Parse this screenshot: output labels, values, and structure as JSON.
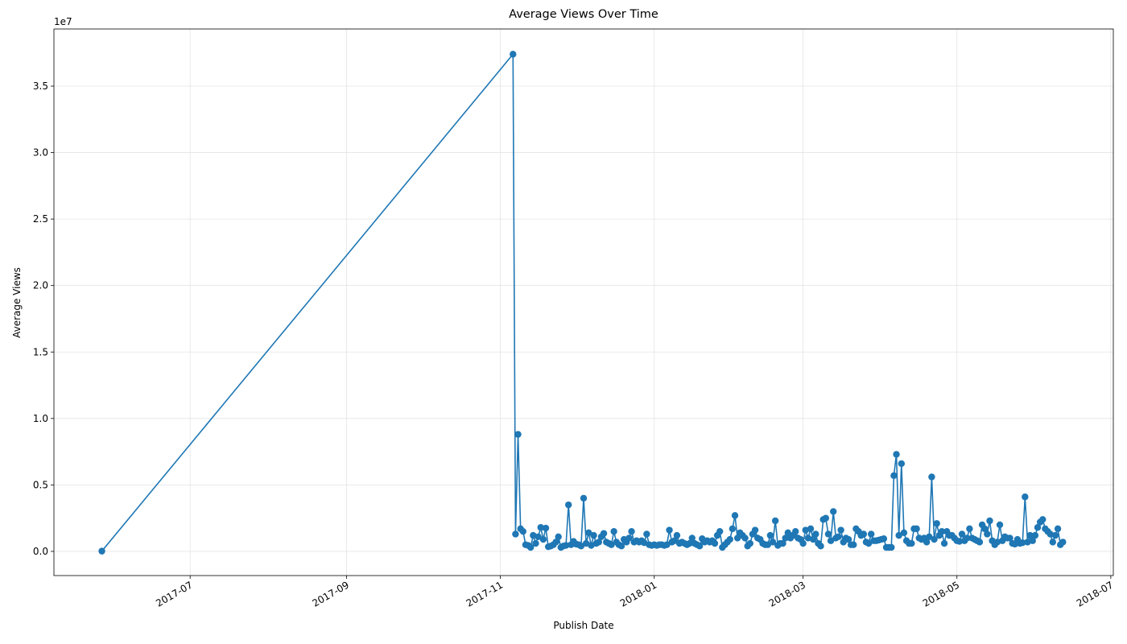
{
  "chart_data": {
    "type": "line",
    "title": "Average Views Over Time",
    "x_label": "Publish Date",
    "y_label": "Average Views",
    "y_offset_label": "1e7",
    "grid": true,
    "x": [
      "2017-05-27",
      "2017-11-06",
      "2017-11-07",
      "2017-11-08",
      "2017-11-09",
      "2017-11-10",
      "2017-11-11",
      "2017-11-12",
      "2017-11-13",
      "2017-11-14",
      "2017-11-15",
      "2017-11-16",
      "2017-11-17",
      "2017-11-18",
      "2017-11-19",
      "2017-11-20",
      "2017-11-21",
      "2017-11-22",
      "2017-11-23",
      "2017-11-24",
      "2017-11-25",
      "2017-11-26",
      "2017-11-27",
      "2017-11-28",
      "2017-11-29",
      "2017-11-30",
      "2017-12-01",
      "2017-12-02",
      "2017-12-03",
      "2017-12-04",
      "2017-12-05",
      "2017-12-06",
      "2017-12-07",
      "2017-12-08",
      "2017-12-09",
      "2017-12-10",
      "2017-12-11",
      "2017-12-12",
      "2017-12-13",
      "2017-12-14",
      "2017-12-15",
      "2017-12-16",
      "2017-12-17",
      "2017-12-18",
      "2017-12-19",
      "2017-12-20",
      "2017-12-21",
      "2017-12-22",
      "2017-12-23",
      "2017-12-24",
      "2017-12-25",
      "2017-12-26",
      "2017-12-27",
      "2017-12-28",
      "2017-12-29",
      "2017-12-30",
      "2017-12-31",
      "2018-01-01",
      "2018-01-02",
      "2018-01-03",
      "2018-01-04",
      "2018-01-05",
      "2018-01-06",
      "2018-01-07",
      "2018-01-08",
      "2018-01-09",
      "2018-01-10",
      "2018-01-11",
      "2018-01-12",
      "2018-01-13",
      "2018-01-14",
      "2018-01-15",
      "2018-01-16",
      "2018-01-17",
      "2018-01-18",
      "2018-01-19",
      "2018-01-20",
      "2018-01-21",
      "2018-01-22",
      "2018-01-23",
      "2018-01-24",
      "2018-01-25",
      "2018-01-26",
      "2018-01-27",
      "2018-01-28",
      "2018-01-29",
      "2018-01-30",
      "2018-01-31",
      "2018-02-01",
      "2018-02-02",
      "2018-02-03",
      "2018-02-04",
      "2018-02-05",
      "2018-02-06",
      "2018-02-07",
      "2018-02-08",
      "2018-02-09",
      "2018-02-10",
      "2018-02-11",
      "2018-02-12",
      "2018-02-13",
      "2018-02-14",
      "2018-02-15",
      "2018-02-16",
      "2018-02-17",
      "2018-02-18",
      "2018-02-19",
      "2018-02-20",
      "2018-02-21",
      "2018-02-22",
      "2018-02-23",
      "2018-02-24",
      "2018-02-25",
      "2018-02-26",
      "2018-02-27",
      "2018-02-28",
      "2018-03-01",
      "2018-03-02",
      "2018-03-03",
      "2018-03-04",
      "2018-03-05",
      "2018-03-06",
      "2018-03-07",
      "2018-03-08",
      "2018-03-09",
      "2018-03-10",
      "2018-03-11",
      "2018-03-12",
      "2018-03-13",
      "2018-03-14",
      "2018-03-15",
      "2018-03-16",
      "2018-03-17",
      "2018-03-18",
      "2018-03-19",
      "2018-03-20",
      "2018-03-21",
      "2018-03-22",
      "2018-03-23",
      "2018-03-24",
      "2018-03-25",
      "2018-03-26",
      "2018-03-27",
      "2018-03-28",
      "2018-03-29",
      "2018-03-30",
      "2018-03-31",
      "2018-04-01",
      "2018-04-02",
      "2018-04-03",
      "2018-04-04",
      "2018-04-05",
      "2018-04-06",
      "2018-04-07",
      "2018-04-08",
      "2018-04-09",
      "2018-04-10",
      "2018-04-11",
      "2018-04-12",
      "2018-04-13",
      "2018-04-14",
      "2018-04-15",
      "2018-04-16",
      "2018-04-17",
      "2018-04-18",
      "2018-04-19",
      "2018-04-20",
      "2018-04-21",
      "2018-04-22",
      "2018-04-23",
      "2018-04-24",
      "2018-04-25",
      "2018-04-26",
      "2018-04-27",
      "2018-04-28",
      "2018-04-29",
      "2018-04-30",
      "2018-05-01",
      "2018-05-02",
      "2018-05-03",
      "2018-05-04",
      "2018-05-05",
      "2018-05-06",
      "2018-05-07",
      "2018-05-08",
      "2018-05-09",
      "2018-05-10",
      "2018-05-11",
      "2018-05-12",
      "2018-05-13",
      "2018-05-14",
      "2018-05-15",
      "2018-05-16",
      "2018-05-17",
      "2018-05-18",
      "2018-05-19",
      "2018-05-20",
      "2018-05-21",
      "2018-05-22",
      "2018-05-23",
      "2018-05-24",
      "2018-05-25",
      "2018-05-26",
      "2018-05-27",
      "2018-05-28",
      "2018-05-29",
      "2018-05-30",
      "2018-05-31",
      "2018-06-01",
      "2018-06-02",
      "2018-06-03",
      "2018-06-04",
      "2018-06-05",
      "2018-06-06",
      "2018-06-07",
      "2018-06-08",
      "2018-06-09",
      "2018-06-10",
      "2018-06-11",
      "2018-06-12"
    ],
    "series": [
      {
        "name": "Average Views",
        "color": "#1f77b4",
        "values": [
          20000,
          37400000,
          1300000,
          8800000,
          1700000,
          1500000,
          500000,
          450000,
          300000,
          1200000,
          600000,
          1100000,
          1800000,
          900000,
          1750000,
          350000,
          400000,
          500000,
          700000,
          1100000,
          300000,
          400000,
          450000,
          3500000,
          500000,
          750000,
          550000,
          500000,
          400000,
          4000000,
          600000,
          1400000,
          450000,
          1200000,
          600000,
          700000,
          1100000,
          1350000,
          700000,
          600000,
          500000,
          1500000,
          700000,
          500000,
          400000,
          900000,
          700000,
          1000000,
          1500000,
          700000,
          800000,
          700000,
          800000,
          650000,
          1300000,
          500000,
          450000,
          500000,
          450000,
          500000,
          500000,
          450000,
          500000,
          1600000,
          700000,
          800000,
          1200000,
          600000,
          700000,
          600000,
          500000,
          600000,
          1000000,
          600000,
          500000,
          400000,
          950000,
          700000,
          800000,
          700000,
          800000,
          600000,
          1200000,
          1500000,
          300000,
          500000,
          700000,
          900000,
          1700000,
          2700000,
          1000000,
          1400000,
          1200000,
          1000000,
          400000,
          600000,
          1300000,
          1600000,
          1000000,
          900000,
          600000,
          500000,
          500000,
          1200000,
          700000,
          2300000,
          450000,
          600000,
          600000,
          1000000,
          1400000,
          1000000,
          1200000,
          1500000,
          1000000,
          900000,
          600000,
          1600000,
          1000000,
          1700000,
          900000,
          1300000,
          600000,
          400000,
          2400000,
          2500000,
          1300000,
          800000,
          3000000,
          1000000,
          1100000,
          1600000,
          700000,
          1000000,
          900000,
          500000,
          500000,
          1700000,
          1500000,
          1200000,
          1300000,
          700000,
          600000,
          1300000,
          800000,
          800000,
          850000,
          900000,
          950000,
          300000,
          300000,
          300000,
          5700000,
          7300000,
          1200000,
          6600000,
          1400000,
          800000,
          600000,
          600000,
          1700000,
          1700000,
          1000000,
          900000,
          1000000,
          700000,
          1100000,
          5600000,
          900000,
          2100000,
          1200000,
          1500000,
          600000,
          1500000,
          1200000,
          1200000,
          1000000,
          800000,
          750000,
          1300000,
          800000,
          1000000,
          1700000,
          1000000,
          900000,
          800000,
          700000,
          2000000,
          1700000,
          1300000,
          2300000,
          800000,
          500000,
          700000,
          2000000,
          800000,
          1100000,
          1000000,
          1000000,
          600000,
          550000,
          900000,
          600000,
          650000,
          4100000,
          700000,
          1200000,
          800000,
          1200000,
          1800000,
          2200000,
          2400000,
          1700000,
          1500000,
          1300000,
          700000,
          1200000,
          1700000,
          500000,
          700000
        ]
      }
    ],
    "xlim": [
      "2017-05-08",
      "2018-07-02"
    ],
    "xticks": [
      "2017-07",
      "2017-09",
      "2017-11",
      "2018-01",
      "2018-03",
      "2018-05",
      "2018-07"
    ],
    "ylim": [
      -1820000,
      39300000
    ],
    "yticks": [
      {
        "value": 0,
        "label": "0.0"
      },
      {
        "value": 5000000,
        "label": "0.5"
      },
      {
        "value": 10000000,
        "label": "1.0"
      },
      {
        "value": 15000000,
        "label": "1.5"
      },
      {
        "value": 20000000,
        "label": "2.0"
      },
      {
        "value": 25000000,
        "label": "2.5"
      },
      {
        "value": 30000000,
        "label": "3.0"
      },
      {
        "value": 35000000,
        "label": "3.5"
      }
    ]
  }
}
